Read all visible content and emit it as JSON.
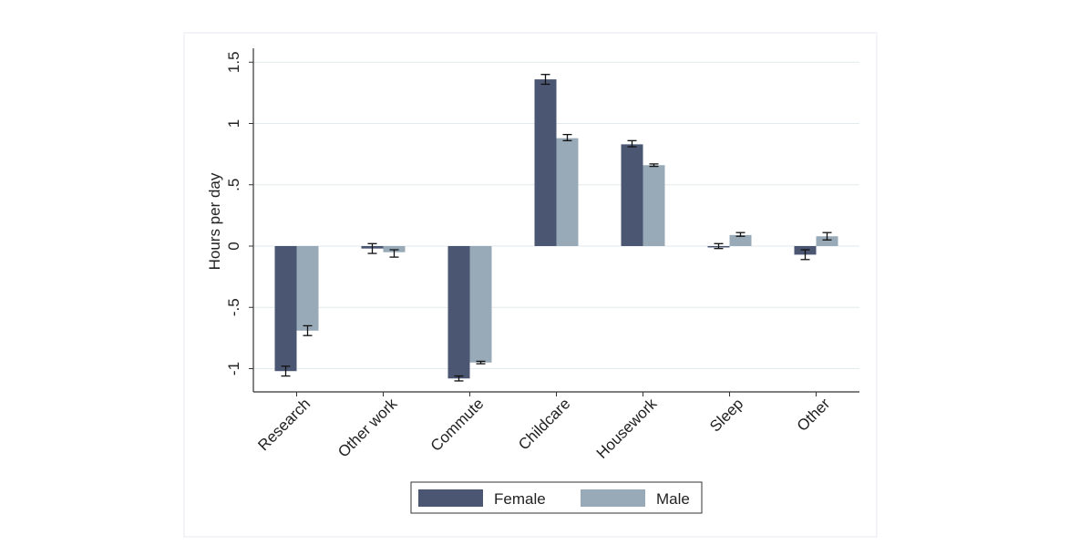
{
  "chart_data": {
    "type": "bar",
    "title": "",
    "xlabel": "",
    "ylabel": "Hours per day",
    "ylim": [
      -1.2,
      1.5
    ],
    "yticks": [
      -1,
      -0.5,
      0,
      0.5,
      1,
      1.5
    ],
    "ytick_labels": [
      "-1",
      "-.5",
      "0",
      ".5",
      "1",
      "1.5"
    ],
    "grid": true,
    "legend_position": "bottom-center",
    "categories": [
      "Research",
      "Other work",
      "Commute",
      "Childcare",
      "Housework",
      "Sleep",
      "Other"
    ],
    "series": [
      {
        "name": "Female",
        "color": "#4b5673",
        "values": [
          -1.02,
          -0.02,
          -1.08,
          1.36,
          0.83,
          0.0,
          -0.07
        ],
        "ci_low": [
          -1.06,
          -0.06,
          -1.1,
          1.32,
          0.81,
          -0.02,
          -0.11
        ],
        "ci_high": [
          -0.98,
          0.02,
          -1.06,
          1.4,
          0.86,
          0.02,
          -0.03
        ]
      },
      {
        "name": "Male",
        "color": "#98aab8",
        "values": [
          -0.69,
          -0.05,
          -0.95,
          0.88,
          0.66,
          0.09,
          0.08
        ],
        "ci_low": [
          -0.73,
          -0.09,
          -0.96,
          0.86,
          0.65,
          0.08,
          0.05
        ],
        "ci_high": [
          -0.65,
          -0.03,
          -0.94,
          0.91,
          0.67,
          0.11,
          0.11
        ]
      }
    ]
  }
}
